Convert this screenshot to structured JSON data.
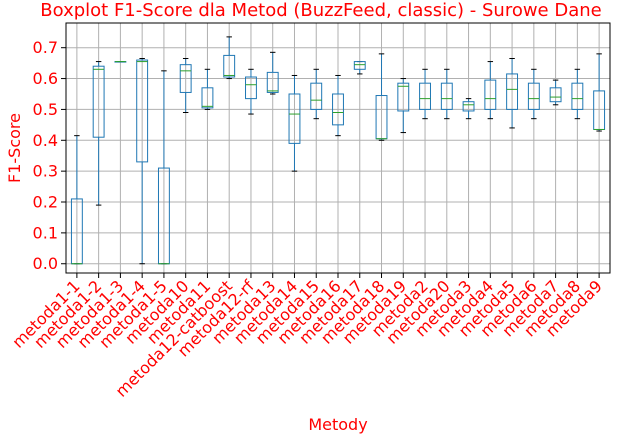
{
  "chart_data": {
    "type": "boxplot",
    "title": "Boxplot F1-Score dla Metod (BuzzFeed, classic) - Surowe Dane",
    "xlabel": "Metody",
    "ylabel": "F1-Score",
    "ylim": [
      -0.03,
      0.78
    ],
    "yticks": [
      "0.0",
      "0.1",
      "0.2",
      "0.3",
      "0.4",
      "0.5",
      "0.6",
      "0.7"
    ],
    "grid": true,
    "colors": {
      "text": "#ff0000",
      "box": "#1f77b4",
      "median": "#2ca02c",
      "grid": "#b0b0b0"
    },
    "categories": [
      "metoda1-1",
      "metoda1-2",
      "metoda1-3",
      "metoda1-4",
      "metoda1-5",
      "metoda10",
      "metoda11",
      "metoda12-catboost",
      "metoda12-rf",
      "metoda13",
      "metoda14",
      "metoda15",
      "metoda16",
      "metoda17",
      "metoda18",
      "metoda19",
      "metoda2",
      "metoda20",
      "metoda3",
      "metoda4",
      "metoda5",
      "metoda6",
      "metoda7",
      "metoda8",
      "metoda9"
    ],
    "boxes": [
      {
        "whislo": 0.0,
        "q1": 0.0,
        "med": 0.0,
        "q3": 0.21,
        "whishi": 0.415
      },
      {
        "whislo": 0.19,
        "q1": 0.41,
        "med": 0.63,
        "q3": 0.64,
        "whishi": 0.655
      },
      {
        "whislo": 0.655,
        "q1": 0.655,
        "med": 0.655,
        "q3": 0.655,
        "whishi": 0.655
      },
      {
        "whislo": 0.0,
        "q1": 0.33,
        "med": 0.655,
        "q3": 0.66,
        "whishi": 0.665
      },
      {
        "whislo": 0.0,
        "q1": 0.0,
        "med": 0.0,
        "q3": 0.31,
        "whishi": 0.625
      },
      {
        "whislo": 0.49,
        "q1": 0.555,
        "med": 0.625,
        "q3": 0.645,
        "whishi": 0.665
      },
      {
        "whislo": 0.5,
        "q1": 0.505,
        "med": 0.51,
        "q3": 0.57,
        "whishi": 0.63
      },
      {
        "whislo": 0.6,
        "q1": 0.605,
        "med": 0.61,
        "q3": 0.675,
        "whishi": 0.735
      },
      {
        "whislo": 0.485,
        "q1": 0.535,
        "med": 0.58,
        "q3": 0.605,
        "whishi": 0.63
      },
      {
        "whislo": 0.55,
        "q1": 0.555,
        "med": 0.56,
        "q3": 0.62,
        "whishi": 0.685
      },
      {
        "whislo": 0.3,
        "q1": 0.39,
        "med": 0.485,
        "q3": 0.55,
        "whishi": 0.61
      },
      {
        "whislo": 0.47,
        "q1": 0.5,
        "med": 0.53,
        "q3": 0.585,
        "whishi": 0.63
      },
      {
        "whislo": 0.415,
        "q1": 0.45,
        "med": 0.49,
        "q3": 0.55,
        "whishi": 0.61
      },
      {
        "whislo": 0.615,
        "q1": 0.63,
        "med": 0.645,
        "q3": 0.655,
        "whishi": 0.655
      },
      {
        "whislo": 0.4,
        "q1": 0.405,
        "med": 0.405,
        "q3": 0.545,
        "whishi": 0.68
      },
      {
        "whislo": 0.425,
        "q1": 0.495,
        "med": 0.575,
        "q3": 0.585,
        "whishi": 0.6
      },
      {
        "whislo": 0.47,
        "q1": 0.5,
        "med": 0.535,
        "q3": 0.585,
        "whishi": 0.63
      },
      {
        "whislo": 0.47,
        "q1": 0.5,
        "med": 0.535,
        "q3": 0.585,
        "whishi": 0.63
      },
      {
        "whislo": 0.47,
        "q1": 0.495,
        "med": 0.515,
        "q3": 0.525,
        "whishi": 0.535
      },
      {
        "whislo": 0.47,
        "q1": 0.5,
        "med": 0.535,
        "q3": 0.595,
        "whishi": 0.655
      },
      {
        "whislo": 0.44,
        "q1": 0.5,
        "med": 0.565,
        "q3": 0.615,
        "whishi": 0.665
      },
      {
        "whislo": 0.47,
        "q1": 0.5,
        "med": 0.535,
        "q3": 0.585,
        "whishi": 0.63
      },
      {
        "whislo": 0.515,
        "q1": 0.525,
        "med": 0.54,
        "q3": 0.57,
        "whishi": 0.595
      },
      {
        "whislo": 0.47,
        "q1": 0.5,
        "med": 0.535,
        "q3": 0.585,
        "whishi": 0.63
      },
      {
        "whislo": 0.43,
        "q1": 0.435,
        "med": 0.435,
        "q3": 0.56,
        "whishi": 0.68
      }
    ]
  }
}
